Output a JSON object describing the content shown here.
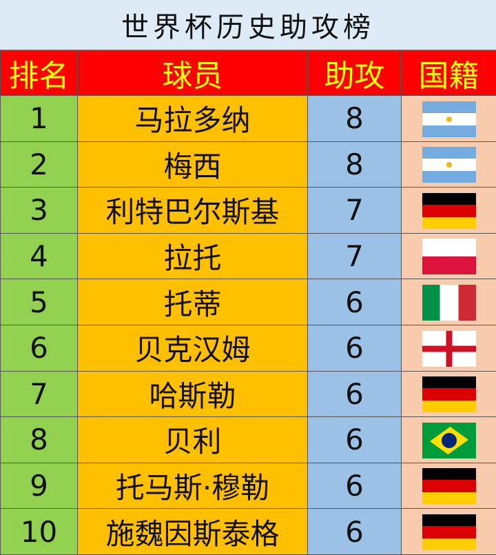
{
  "title": "世界杯历史助攻榜",
  "headers": {
    "rank": "排名",
    "player": "球员",
    "assists": "助攻",
    "nationality": "国籍"
  },
  "colors": {
    "title_bg": "#ddebf7",
    "header_bg": "#ff0000",
    "header_text": "#ffff00",
    "rank_bg": "#92d050",
    "player_bg": "#ffc000",
    "assists_bg": "#9bc2e6",
    "nationality_bg": "#f8cbad"
  },
  "rows": [
    {
      "rank": "1",
      "player": "马拉多纳",
      "assists": "8",
      "flag": "argentina"
    },
    {
      "rank": "2",
      "player": "梅西",
      "assists": "8",
      "flag": "argentina"
    },
    {
      "rank": "3",
      "player": "利特巴尔斯基",
      "assists": "7",
      "flag": "germany"
    },
    {
      "rank": "4",
      "player": "拉托",
      "assists": "7",
      "flag": "poland"
    },
    {
      "rank": "5",
      "player": "托蒂",
      "assists": "6",
      "flag": "italy"
    },
    {
      "rank": "6",
      "player": "贝克汉姆",
      "assists": "6",
      "flag": "england"
    },
    {
      "rank": "7",
      "player": "哈斯勒",
      "assists": "6",
      "flag": "germany"
    },
    {
      "rank": "8",
      "player": "贝利",
      "assists": "6",
      "flag": "brazil"
    },
    {
      "rank": "9",
      "player": "托马斯·穆勒",
      "assists": "6",
      "flag": "germany"
    },
    {
      "rank": "10",
      "player": "施魏因斯泰格",
      "assists": "6",
      "flag": "germany"
    }
  ]
}
